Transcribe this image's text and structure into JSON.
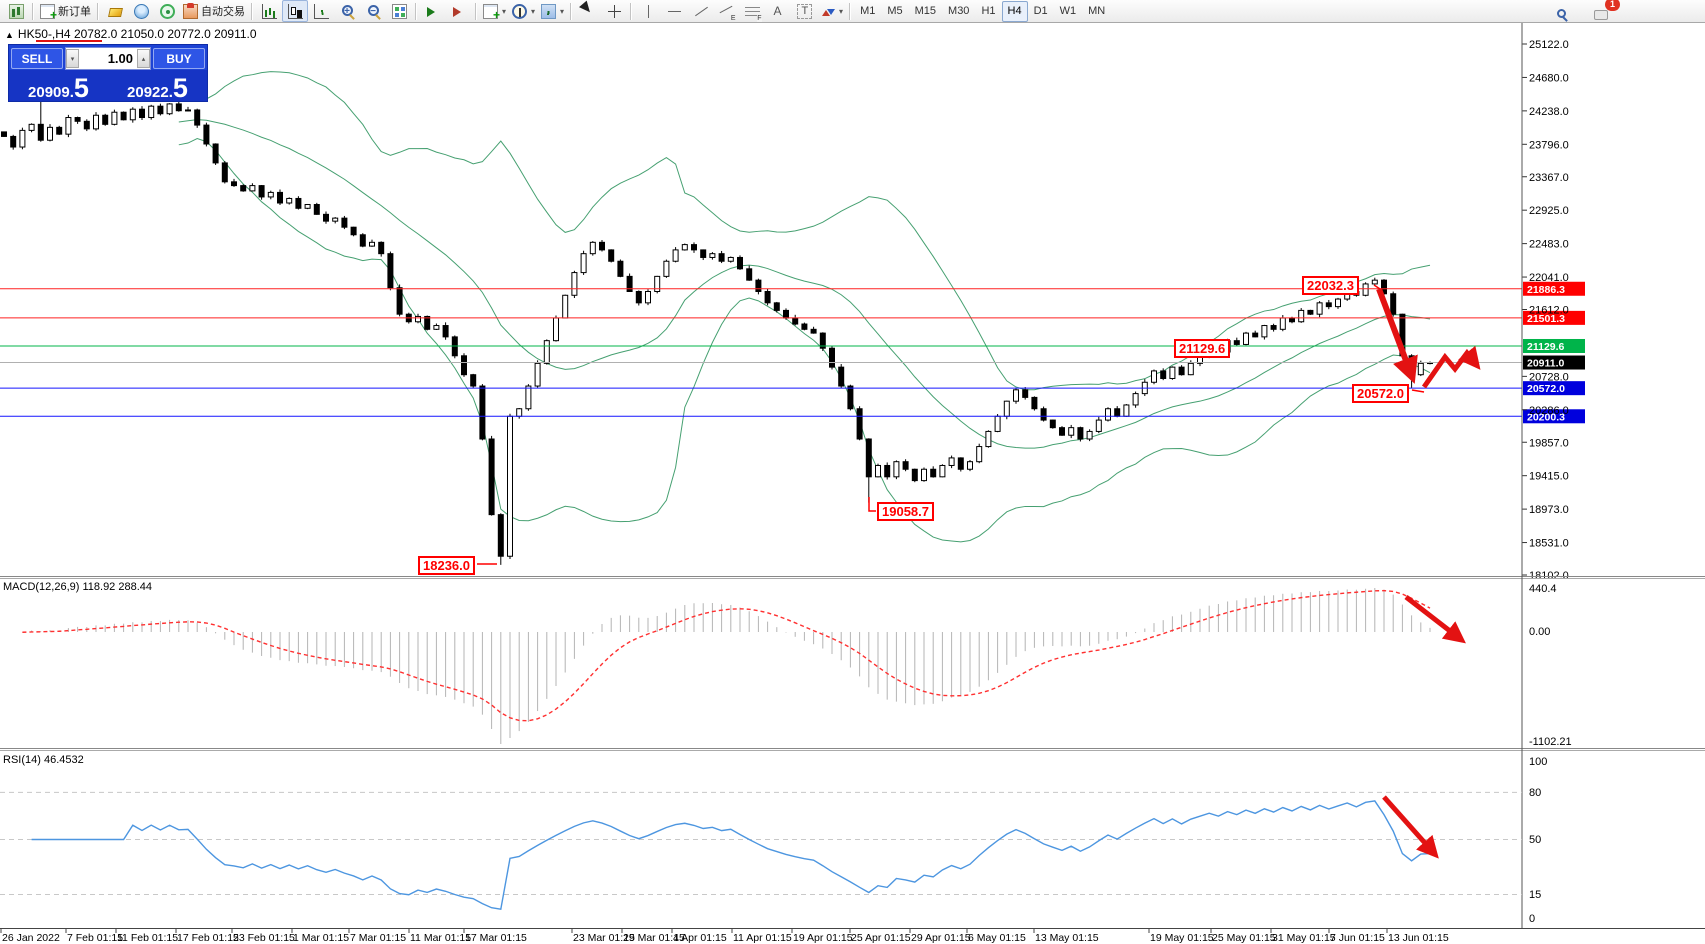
{
  "toolbar": {
    "new_order_label": "新订单",
    "auto_trading_label": "自动交易",
    "timeframes": [
      "M1",
      "M5",
      "M15",
      "M30",
      "H1",
      "H4",
      "D1",
      "W1",
      "MN"
    ],
    "active_timeframe": "H4",
    "notification_count": "1"
  },
  "chart": {
    "collapse_marker": "▲",
    "title": "HK50-,H4  20782.0 21050.0 20772.0 20911.0"
  },
  "trade_panel": {
    "sell_label": "SELL",
    "buy_label": "BUY",
    "volume": "1.00",
    "sell_price_int": "20909",
    "sell_price_frac": "5",
    "buy_price_int": "20922",
    "buy_price_frac": "5"
  },
  "annotations": {
    "peak": "22032.3",
    "mid": "21129.6",
    "support": "20572.0",
    "low_may": "19058.7",
    "low_mar": "18236.0"
  },
  "macd": {
    "label": "MACD(12,26,9) 118.92 288.44",
    "axis_max": "440.4",
    "axis_zero": "0.00",
    "axis_min": "-1102.21"
  },
  "rsi": {
    "label": "RSI(14) 46.4532",
    "axis_labels": [
      "100",
      "80",
      "50",
      "15",
      "0"
    ]
  },
  "chart_data": {
    "type": "candlestick",
    "symbol": "HK50-",
    "timeframe": "H4",
    "ohlc_display": {
      "open": 20782.0,
      "high": 21050.0,
      "low": 20772.0,
      "close": 20911.0
    },
    "bid": 20909.5,
    "ask": 20922.5,
    "colors": {
      "bollinger": "#46a071",
      "up_candle": "#ffffff",
      "down_candle": "#000000",
      "macd_hist": "#b4b4b4",
      "macd_signal": "#ff3030",
      "rsi_line": "#4d96e0",
      "arrow": "#e31212",
      "panel_blue": "#1d43d4"
    },
    "price_axis_ticks": [
      25122,
      24680,
      24238,
      23796,
      23367,
      22925,
      22483,
      22041,
      21612,
      20728,
      20286,
      19857,
      19415,
      18973,
      18531,
      18102
    ],
    "hlines": [
      {
        "price": 21886.3,
        "color": "#ff2222",
        "badge": "#ff0000"
      },
      {
        "price": 21501.3,
        "color": "#ff2222",
        "badge": "#ff0000"
      },
      {
        "price": 21129.6,
        "color": "#00b44a",
        "badge": "#00b44a"
      },
      {
        "price": 20911.0,
        "color": "#b0b0b0",
        "badge": "#000000"
      },
      {
        "price": 20572.0,
        "color": "#1515ff",
        "badge": "#0000dd"
      },
      {
        "price": 20200.3,
        "color": "#1515ff",
        "badge": "#0000dd"
      }
    ],
    "time_labels": [
      "26 Jan 2022",
      "7 Feb 01:15",
      "11 Feb 01:15",
      "17 Feb 01:15",
      "23 Feb 01:15",
      "1 Mar 01:15",
      "7 Mar 01:15",
      "11 Mar 01:15",
      "17 Mar 01:15",
      "23 Mar 01:15",
      "29 Mar 01:15",
      "4 Apr 01:15",
      "11 Apr 01:15",
      "19 Apr 01:15",
      "25 Apr 01:15",
      "29 Apr 01:15",
      "6 May 01:15",
      "13 May 01:15",
      "19 May 01:15",
      "25 May 01:15",
      "31 May 01:15",
      "7 Jun 01:15",
      "13 Jun 01:15"
    ],
    "closes": [
      23900,
      23760,
      23980,
      24060,
      23850,
      24020,
      23930,
      24150,
      24100,
      24000,
      24180,
      24060,
      24220,
      24120,
      24260,
      24150,
      24300,
      24200,
      24330,
      24240,
      24250,
      24050,
      23800,
      23550,
      23300,
      23250,
      23180,
      23250,
      23100,
      23160,
      23020,
      23080,
      22950,
      23000,
      22870,
      22780,
      22820,
      22700,
      22600,
      22450,
      22500,
      22350,
      21900,
      21550,
      21450,
      21520,
      21350,
      21400,
      21250,
      21000,
      20750,
      20600,
      19900,
      18900,
      18350,
      20200,
      20300,
      20600,
      20900,
      21200,
      21500,
      21800,
      22100,
      22350,
      22500,
      22400,
      22250,
      22050,
      21850,
      21700,
      21850,
      22050,
      22250,
      22400,
      22470,
      22400,
      22300,
      22350,
      22250,
      22300,
      22150,
      22000,
      21850,
      21700,
      21600,
      21500,
      21420,
      21350,
      21300,
      21100,
      20850,
      20600,
      20300,
      19900,
      19400,
      19550,
      19400,
      19600,
      19500,
      19350,
      19500,
      19400,
      19550,
      19650,
      19500,
      19600,
      19800,
      20000,
      20200,
      20400,
      20550,
      20450,
      20300,
      20150,
      20050,
      19950,
      20050,
      19900,
      20000,
      20150,
      20300,
      20200,
      20350,
      20500,
      20650,
      20800,
      20700,
      20850,
      20750,
      20900,
      21000,
      21100,
      21050,
      21200,
      21150,
      21300,
      21250,
      21400,
      21350,
      21500,
      21450,
      21600,
      21550,
      21700,
      21650,
      21750,
      21850,
      21800,
      21950,
      22000,
      21820,
      21550,
      21000,
      20750,
      20900,
      20911
    ],
    "extremes": {
      "4": {
        "high": 24500
      },
      "54": {
        "low": 18236.0
      },
      "94": {
        "low": 19058.7
      },
      "149": {
        "high": 22032.3
      },
      "153": {
        "low": 20572.0
      }
    },
    "indicators": {
      "bollinger": {
        "period": 20,
        "deviation": 2
      },
      "macd": {
        "fast": 12,
        "slow": 26,
        "signal": 9,
        "current_values": [
          118.92,
          288.44
        ],
        "scale_max": 440.4,
        "scale_min": -1102.21
      },
      "rsi": {
        "period": 14,
        "current_value": 46.4532,
        "levels": [
          80,
          50,
          15
        ]
      }
    }
  }
}
